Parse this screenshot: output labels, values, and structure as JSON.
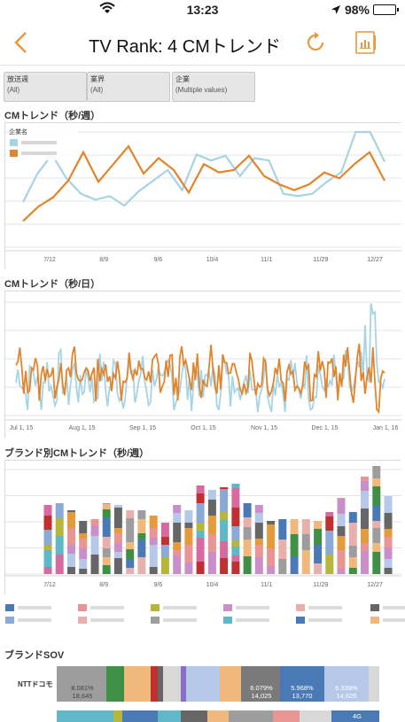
{
  "status": {
    "time": "13:23",
    "battery": "98%"
  },
  "nav": {
    "title": "TV Rank: 4 CMトレンド"
  },
  "filters": [
    {
      "label": "放送週",
      "value": "(All)"
    },
    {
      "label": "業界",
      "value": "(All)"
    },
    {
      "label": "企業",
      "value": "(Multiple values)"
    }
  ],
  "sections": {
    "weekly": "CMトレンド（秒/週）",
    "daily": "CMトレンド（秒/日）",
    "brand": "ブランド別CMトレンド（秒/週）",
    "sov": "ブランドSOV"
  },
  "colors": {
    "accent": "#e59a3c",
    "blue": "#a7d3e3",
    "orange": "#e1852c"
  },
  "chart_weekly": {
    "type": "line",
    "legend_title": "企業名",
    "x_ticks": [
      "7/12",
      "8/9",
      "9/6",
      "10/4",
      "11/1",
      "11/29",
      "12/27"
    ],
    "series": [
      {
        "color": "#a7d3e3",
        "values": [
          38,
          62,
          78,
          58,
          45,
          40,
          43,
          35,
          47,
          56,
          65,
          48,
          78,
          73,
          77,
          60,
          75,
          73,
          45,
          43,
          45,
          55,
          63,
          97,
          97,
          72
        ]
      },
      {
        "color": "#e1852c",
        "values": [
          22,
          34,
          42,
          56,
          80,
          55,
          70,
          85,
          62,
          75,
          65,
          46,
          70,
          63,
          65,
          77,
          60,
          53,
          48,
          53,
          63,
          58,
          70,
          80,
          56
        ]
      }
    ]
  },
  "chart_daily": {
    "type": "line",
    "x_ticks": [
      "Jul 1, 15",
      "Aug 1, 15",
      "Sep 1, 15",
      "Oct 1, 15",
      "Nov 1, 15",
      "Dec 1, 15",
      "Jan 1, 16"
    ]
  },
  "chart_brand": {
    "type": "bar",
    "x_ticks": [
      "7/12",
      "8/9",
      "9/6",
      "10/4",
      "11/1",
      "11/29",
      "12/27"
    ]
  },
  "sov": {
    "rows": [
      {
        "label": "NTTドコモ"
      }
    ],
    "values": [
      {
        "pct": "8.081%",
        "abs": "18,645"
      },
      {
        "pct": "6.079%",
        "abs": "14,025"
      },
      {
        "pct": "5.968%",
        "abs": "13,770"
      },
      {
        "pct": "6.339%",
        "abs": "14,625"
      }
    ],
    "tag_4g": "4G"
  }
}
